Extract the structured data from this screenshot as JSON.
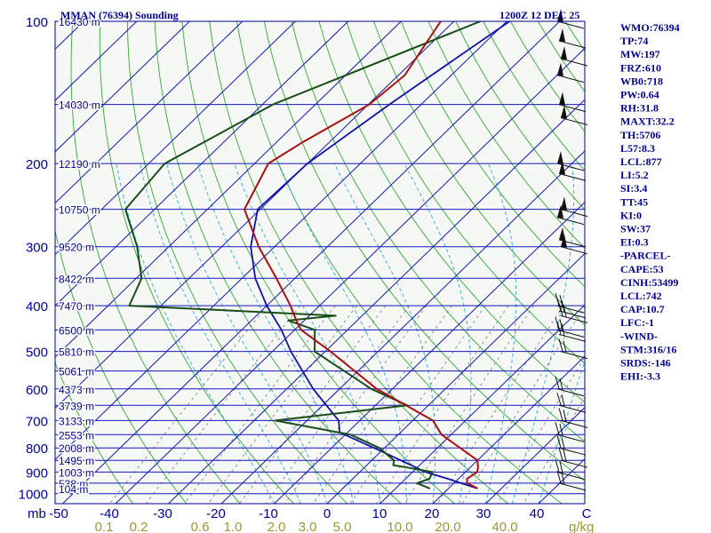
{
  "chart_data": {
    "type": "skewt",
    "title": "MMAN (76394) Sounding",
    "datetime": "1200Z 12 DEC 25",
    "x_unit_label": "mb",
    "mixing_ratio_unit": "g/kg",
    "pressure_ticks": [
      "100",
      "200",
      "300",
      "400",
      "500",
      "600",
      "700",
      "800",
      "900",
      "1000"
    ],
    "temperature_ticks": [
      "-50",
      "-40",
      "-30",
      "-20",
      "-10",
      "0",
      "10",
      "20",
      "30",
      "40",
      "C"
    ],
    "mixing_ratio_labels": [
      "0.1",
      "0.2",
      "0.6",
      "1.0",
      "2.0",
      "3.0",
      "5.0",
      "10.0",
      "20.0",
      "40.0"
    ],
    "height_labels": [
      {
        "p": 100,
        "h": "16430 m"
      },
      {
        "p": 150,
        "h": "14030 m"
      },
      {
        "p": 200,
        "h": "12190 m"
      },
      {
        "p": 250,
        "h": "10750 m"
      },
      {
        "p": 300,
        "h": "9520 m"
      },
      {
        "p": 350,
        "h": "8422 m"
      },
      {
        "p": 400,
        "h": "7470 m"
      },
      {
        "p": 450,
        "h": "6500 m"
      },
      {
        "p": 500,
        "h": "5810 m"
      },
      {
        "p": 550,
        "h": "5061 m"
      },
      {
        "p": 600,
        "h": "4373 m"
      },
      {
        "p": 650,
        "h": "3739 m"
      },
      {
        "p": 700,
        "h": "3133 m"
      },
      {
        "p": 750,
        "h": "2553 m"
      },
      {
        "p": 800,
        "h": "2008 m"
      },
      {
        "p": 850,
        "h": "1495 m"
      },
      {
        "p": 900,
        "h": "1003 m"
      },
      {
        "p": 950,
        "h": "538 m"
      },
      {
        "p": 975,
        "h": "104 m"
      }
    ],
    "temperature_profile": [
      [
        100,
        -72.5
      ],
      [
        130,
        -68.8
      ],
      [
        150,
        -69.8
      ],
      [
        180,
        -75.0
      ],
      [
        200,
        -77.4
      ],
      [
        250,
        -73.0
      ],
      [
        300,
        -63.0
      ],
      [
        350,
        -53.5
      ],
      [
        400,
        -45.5
      ],
      [
        430,
        -41.5
      ],
      [
        450,
        -38.8
      ],
      [
        500,
        -29.0
      ],
      [
        600,
        -13.0
      ],
      [
        700,
        3.8
      ],
      [
        750,
        8.2
      ],
      [
        850,
        20.0
      ],
      [
        880,
        21.5
      ],
      [
        900,
        22.2
      ],
      [
        930,
        21.6
      ],
      [
        950,
        22.5
      ],
      [
        975,
        25.5
      ]
    ],
    "dewpoint_profile": [
      [
        100,
        -65.0
      ],
      [
        150,
        -88.0
      ],
      [
        200,
        -97.0
      ],
      [
        250,
        -95.5
      ],
      [
        300,
        -86.0
      ],
      [
        350,
        -79.0
      ],
      [
        400,
        -76.0
      ],
      [
        420,
        -35.0
      ],
      [
        430,
        -43.0
      ],
      [
        450,
        -36.2
      ],
      [
        500,
        -32.0
      ],
      [
        600,
        -14.0
      ],
      [
        650,
        -4.0
      ],
      [
        700,
        -26.0
      ],
      [
        750,
        -9.0
      ],
      [
        800,
        -1.0
      ],
      [
        850,
        4.2
      ],
      [
        870,
        5.0
      ],
      [
        880,
        8.0
      ],
      [
        900,
        13.8
      ],
      [
        930,
        14.5
      ],
      [
        950,
        13.0
      ],
      [
        975,
        16.5
      ]
    ],
    "parcel_profile": [
      [
        100,
        -59.5
      ],
      [
        150,
        -66.0
      ],
      [
        200,
        -70.0
      ],
      [
        250,
        -70.5
      ],
      [
        300,
        -64.5
      ],
      [
        350,
        -57.5
      ],
      [
        400,
        -50.0
      ],
      [
        450,
        -42.5
      ],
      [
        500,
        -36.5
      ],
      [
        600,
        -25.0
      ],
      [
        700,
        -14.0
      ],
      [
        742,
        -11.5
      ],
      [
        800,
        -2.0
      ],
      [
        850,
        5.5
      ],
      [
        900,
        12.5
      ],
      [
        930,
        18.0
      ],
      [
        975,
        25.5
      ]
    ],
    "indices": [
      "WMO:76394",
      "TP:74",
      "MW:197",
      "FRZ:610",
      "WB0:718",
      "PW:0.64",
      "RH:31.8",
      "MAXT:32.2",
      "TH:5706",
      "L57:8.3",
      "LCL:877",
      "LI:5.2",
      "SI:3.4",
      "TT:45",
      "KI:0",
      "SW:37",
      "EI:0.3",
      "-PARCEL-",
      "CAPE:53",
      "CINH:53499",
      "LCL:742",
      "CAP:10.7",
      "LFC:-1",
      "-WIND-",
      "STM:316/16",
      "SRDS:-146",
      "EHI:-3.3"
    ],
    "wind_pressures": [
      100,
      110,
      120,
      130,
      150,
      160,
      200,
      210,
      250,
      260,
      290,
      300,
      400,
      410,
      420,
      450,
      460,
      500,
      600,
      650,
      700,
      750,
      800,
      850,
      900,
      950
    ],
    "colors": {
      "isobar": "#1515c0",
      "isotherm": "#1515c0",
      "dry_adiabat": "#33aa33",
      "moist_adiabat": "#33aaee",
      "mixing_ratio": "#777777",
      "temperature": "#aa1111",
      "dewpoint": "#1a4d1a",
      "parcel": "#1111aa",
      "text": "#000099",
      "mr_label": "#999933",
      "background": "#f5f8f5",
      "wind": "#111111"
    }
  }
}
